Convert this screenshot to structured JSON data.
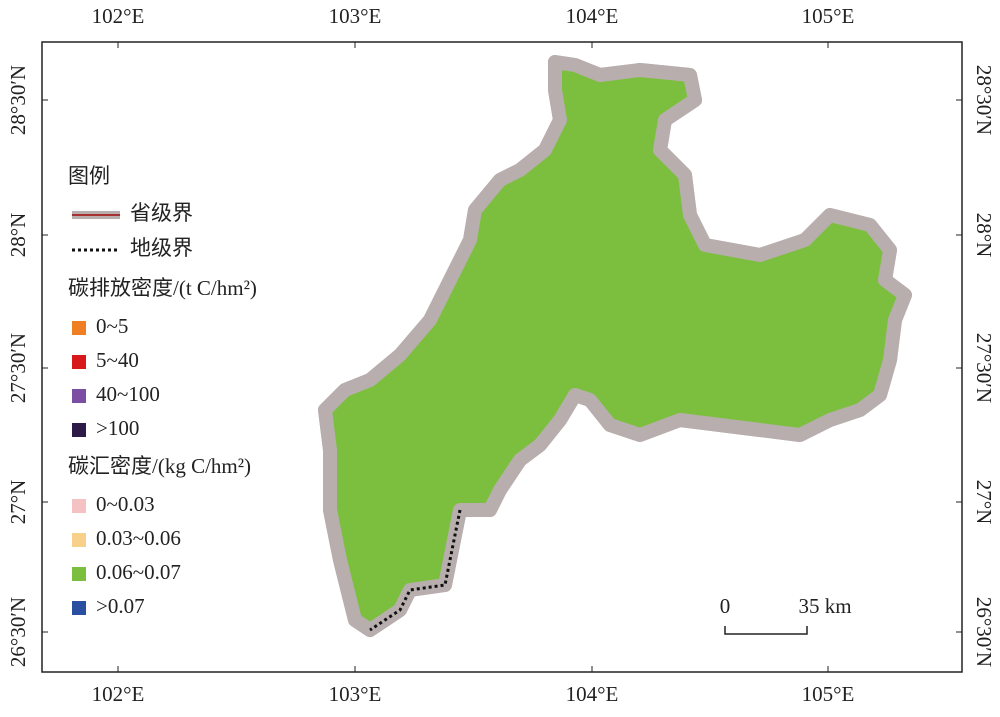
{
  "map": {
    "lon_labels": [
      "102°E",
      "103°E",
      "104°E",
      "105°E"
    ],
    "lat_labels": [
      "28°30′N",
      "28°N",
      "27°30′N",
      "27°N",
      "26°30′N"
    ],
    "legend": {
      "title": "图例",
      "boundaries": [
        {
          "label": "省级界",
          "style": "province"
        },
        {
          "label": "地级界",
          "style": "prefecture"
        }
      ],
      "groups": [
        {
          "title": "碳排放密度/(t C/hm²)",
          "items": [
            {
              "label": "0~5",
              "color": "#f07f24"
            },
            {
              "label": "5~40",
              "color": "#d7191c"
            },
            {
              "label": "40~100",
              "color": "#7b4ea3"
            },
            {
              "label": ">100",
              "color": "#2e1a47"
            }
          ]
        },
        {
          "title": "碳汇密度/(kg C/hm²)",
          "items": [
            {
              "label": "0~0.03",
              "color": "#f4c2c2"
            },
            {
              "label": "0.03~0.06",
              "color": "#f7d08a"
            },
            {
              "label": "0.06~0.07",
              "color": "#7cbf3e"
            },
            {
              "label": ">0.07",
              "color": "#2a4fa0"
            }
          ]
        }
      ]
    },
    "scale_bar": {
      "start": "0",
      "end": "35 km"
    }
  }
}
